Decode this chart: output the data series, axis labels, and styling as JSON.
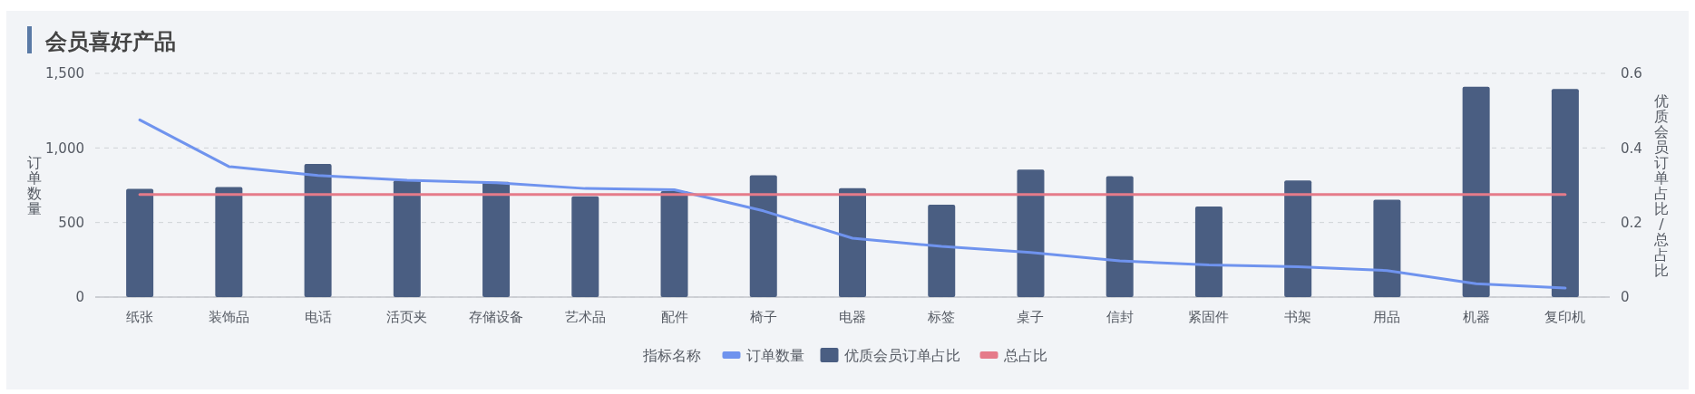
{
  "chart_data": {
    "type": "bar",
    "title": "会员喜好产品",
    "categories": [
      "纸张",
      "装饰品",
      "电话",
      "活页夹",
      "存储设备",
      "艺术品",
      "配件",
      "椅子",
      "电器",
      "标签",
      "桌子",
      "信封",
      "紧固件",
      "书架",
      "用品",
      "机器",
      "复印机"
    ],
    "series": [
      {
        "name": "订单数量",
        "type": "line",
        "color": "#6f93ee",
        "values": [
          1188,
          875,
          815,
          783,
          766,
          728,
          720,
          578,
          395,
          340,
          299,
          243,
          215,
          203,
          178,
          89,
          60
        ]
      },
      {
        "name": "优质会员订单占比",
        "axis": "y2",
        "color": "#4a5e82",
        "values": [
          0.29,
          0.295,
          0.357,
          0.313,
          0.309,
          0.27,
          0.284,
          0.327,
          0.292,
          0.248,
          0.342,
          0.324,
          0.243,
          0.313,
          0.261,
          0.564,
          0.558
        ]
      },
      {
        "name": "总占比",
        "type": "line",
        "axis": "y2",
        "color": "#e57b8a",
        "values": [
          0.275,
          0.275,
          0.275,
          0.275,
          0.275,
          0.275,
          0.275,
          0.275,
          0.275,
          0.275,
          0.275,
          0.275,
          0.275,
          0.275,
          0.275,
          0.275,
          0.275
        ]
      }
    ],
    "ylabel": "订单数量",
    "y2label": "优质会员订单占比/总占比",
    "legend_title": "指标名称",
    "legend": "bottom",
    "ylim": [
      0,
      1500
    ],
    "yticks": [
      0,
      {
        "value": 500,
        "label": "500"
      },
      {
        "value": 1000,
        "label": "1,000"
      },
      {
        "value": 1500,
        "label": "1,500"
      }
    ],
    "y2lim": [
      0,
      0.6
    ],
    "y2ticks": [
      0,
      0.2,
      0.4,
      0.6
    ],
    "grid": "y"
  }
}
